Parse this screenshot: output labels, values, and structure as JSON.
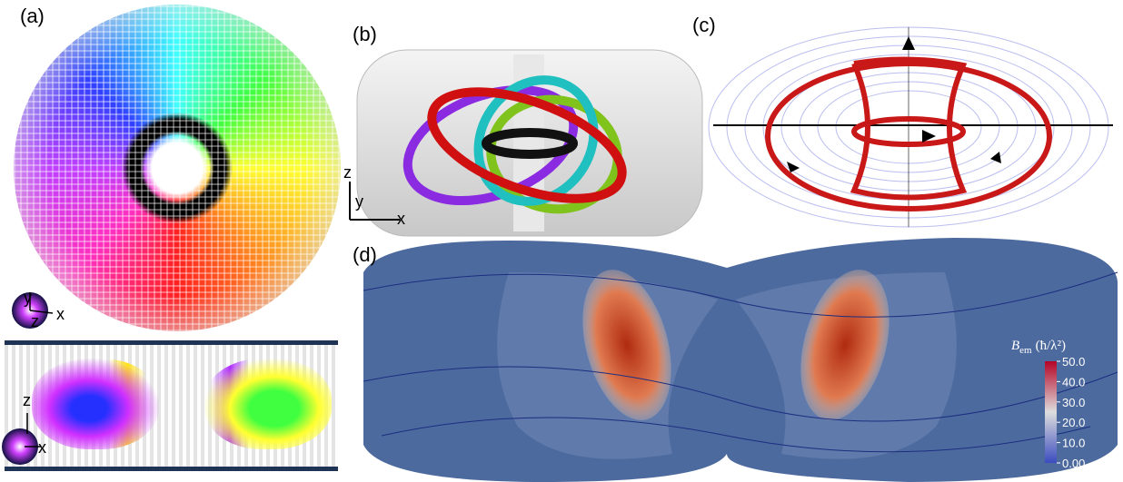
{
  "panels": {
    "a": {
      "label": "(a)",
      "top_axes": {
        "y": "y",
        "z": "z",
        "x": "x"
      },
      "bottom_axes": {
        "z": "z",
        "x": "x"
      }
    },
    "b": {
      "label": "(b)",
      "axes": {
        "z": "z",
        "y": "y",
        "x": "x"
      }
    },
    "c": {
      "label": "(c)"
    },
    "d": {
      "label": "(d)",
      "colorbar": {
        "symbol": "B",
        "subscript": "em",
        "unit": "(ħ/λ²)",
        "range": [
          0,
          50
        ],
        "ticks": [
          {
            "value": 50,
            "label": "50.0"
          },
          {
            "value": 40,
            "label": "40.0"
          },
          {
            "value": 30,
            "label": "30.0"
          },
          {
            "value": 20,
            "label": "20.0"
          },
          {
            "value": 10,
            "label": "10.0"
          },
          {
            "value": 0,
            "label": "0.00"
          }
        ]
      }
    }
  }
}
